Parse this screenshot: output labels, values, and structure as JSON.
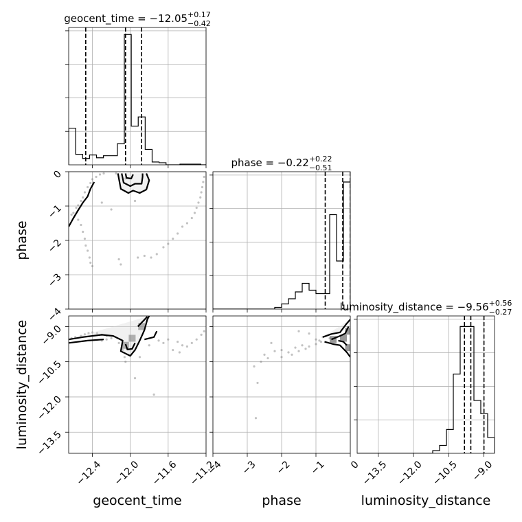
{
  "chart_data": {
    "type": "corner",
    "parameters": [
      {
        "name": "geocent_time",
        "title_prefix": "geocent_time = −12.05",
        "title_plus": "+0.17",
        "title_minus": "−0.42",
        "median": -12.05,
        "q_low": -12.47,
        "q_high": -11.88,
        "range": [
          -12.65,
          -11.2
        ],
        "ticks": [
          -12.4,
          -12.0,
          -11.6,
          -11.2
        ],
        "tick_labels": [
          "−12.4",
          "−12.0",
          "−11.6",
          "−11.2"
        ],
        "hist_bin_edges": [
          -12.65,
          -12.5766,
          -12.5032,
          -12.4298,
          -12.3564,
          -12.283,
          -12.2096,
          -12.1362,
          -12.0628,
          -11.9894,
          -11.916,
          -11.8426,
          -11.7692,
          -11.6958,
          -11.6224,
          -11.549,
          -11.4756,
          -11.4022,
          -11.3288,
          -11.2554,
          -11.2
        ],
        "hist_counts": [
          0.52,
          0.15,
          0.09,
          0.14,
          0.1,
          0.13,
          0.13,
          0.3,
          1.85,
          0.55,
          0.68,
          0.22,
          0.04,
          0.03,
          0.0,
          0.0,
          0.01,
          0.01,
          0.01,
          0.0
        ],
        "hist_ymax": 1.95
      },
      {
        "name": "phase",
        "title_prefix": "phase = −0.22",
        "title_plus": "+0.22",
        "title_minus": "−0.51",
        "median": -0.22,
        "q_low": -0.73,
        "q_high": 0.0,
        "range": [
          -4.0,
          0.0
        ],
        "ticks": [
          -4,
          -3,
          -2,
          -1,
          0
        ],
        "tick_labels": [
          "−4",
          "−3",
          "−2",
          "−1",
          "0"
        ],
        "y_tick_labels": [
          "−4",
          "−3",
          "−2",
          "−1",
          "0"
        ],
        "hist_bin_edges": [
          -4.0,
          -3.8,
          -3.6,
          -3.4,
          -3.2,
          -3.0,
          -2.8,
          -2.6,
          -2.4,
          -2.2,
          -2.0,
          -1.8,
          -1.6,
          -1.4,
          -1.2,
          -1.0,
          -0.8,
          -0.6,
          -0.4,
          -0.2,
          0.0
        ],
        "hist_counts": [
          0.0,
          0.0,
          0.0,
          0.0,
          0.0,
          0.0,
          0.0,
          0.0,
          0.0,
          0.01,
          0.03,
          0.06,
          0.1,
          0.15,
          0.11,
          0.09,
          0.09,
          0.55,
          0.28,
          0.74
        ],
        "hist_ymax": 0.8
      },
      {
        "name": "luminosity_distance",
        "title_prefix": "luminosity_distance = −9.56",
        "title_plus": "+0.56",
        "title_minus": "−0.27",
        "median": -9.56,
        "q_low": -9.83,
        "q_high": -9.0,
        "range": [
          -14.4,
          -8.55
        ],
        "ticks": [
          -13.5,
          -12.0,
          -10.5,
          -9.0
        ],
        "tick_labels": [
          "−13.5",
          "−12.0",
          "−10.5",
          "−9.0"
        ],
        "y_tick_labels": [
          "−13.5",
          "−12.0",
          "−10.5",
          "−9.0"
        ],
        "hist_bin_edges": [
          -14.4,
          -14.1075,
          -13.815,
          -13.5225,
          -13.23,
          -12.9375,
          -12.645,
          -12.3525,
          -12.06,
          -11.7675,
          -11.475,
          -11.1825,
          -10.89,
          -10.5975,
          -10.305,
          -10.0125,
          -9.72,
          -9.4275,
          -9.135,
          -8.8425,
          -8.55
        ],
        "hist_counts": [
          0.0,
          0.0,
          0.0,
          0.0,
          0.0,
          0.0,
          0.0,
          0.0,
          0.0,
          0.0,
          0.0,
          0.01,
          0.03,
          0.09,
          0.3,
          0.48,
          0.48,
          0.2,
          0.15,
          0.06
        ],
        "hist_ymax": 0.52
      }
    ],
    "axis_labels": {
      "x": [
        "geocent_time",
        "phase",
        "luminosity_distance"
      ],
      "y": [
        "phase",
        "luminosity_distance"
      ]
    },
    "pairs": [
      {
        "x": "geocent_time",
        "y": "phase",
        "scatter": [
          [
            -12.62,
            -1.25
          ],
          [
            -12.6,
            -1.2
          ],
          [
            -12.57,
            -1.05
          ],
          [
            -12.55,
            -0.98
          ],
          [
            -12.52,
            -0.85
          ],
          [
            -12.5,
            -0.75
          ],
          [
            -12.48,
            -0.6
          ],
          [
            -12.45,
            -0.45
          ],
          [
            -12.42,
            -0.33
          ],
          [
            -12.4,
            -0.22
          ],
          [
            -12.36,
            -0.15
          ],
          [
            -12.32,
            -0.08
          ],
          [
            -12.28,
            -0.05
          ],
          [
            -12.55,
            -1.4
          ],
          [
            -12.52,
            -1.55
          ],
          [
            -12.5,
            -1.75
          ],
          [
            -12.48,
            -1.95
          ],
          [
            -12.47,
            -2.15
          ],
          [
            -12.45,
            -2.3
          ],
          [
            -12.43,
            -2.5
          ],
          [
            -12.42,
            -2.65
          ],
          [
            -12.4,
            -2.75
          ],
          [
            -12.1,
            -2.7
          ],
          [
            -12.12,
            -2.55
          ],
          [
            -11.92,
            -2.5
          ],
          [
            -11.85,
            -2.45
          ],
          [
            -11.78,
            -2.5
          ],
          [
            -11.72,
            -2.4
          ],
          [
            -11.65,
            -2.2
          ],
          [
            -11.6,
            -2.1
          ],
          [
            -11.55,
            -1.95
          ],
          [
            -11.5,
            -1.8
          ],
          [
            -11.45,
            -1.6
          ],
          [
            -11.4,
            -1.5
          ],
          [
            -11.35,
            -1.35
          ],
          [
            -11.32,
            -1.2
          ],
          [
            -11.3,
            -1.05
          ],
          [
            -11.28,
            -0.9
          ],
          [
            -11.26,
            -0.75
          ],
          [
            -11.25,
            -0.6
          ],
          [
            -11.24,
            -0.45
          ],
          [
            -11.23,
            -0.3
          ],
          [
            -11.22,
            -0.15
          ],
          [
            -11.9,
            -0.6
          ],
          [
            -12.0,
            -0.4
          ],
          [
            -12.05,
            -0.2
          ],
          [
            -12.15,
            -0.05
          ],
          [
            -11.95,
            -0.85
          ],
          [
            -12.3,
            -0.9
          ],
          [
            -12.2,
            -1.1
          ]
        ],
        "contours": [
          [
            [
              -12.13,
              -0.05
            ],
            [
              -12.1,
              -0.5
            ],
            [
              -12.02,
              -0.62
            ],
            [
              -11.97,
              -0.55
            ],
            [
              -11.9,
              -0.62
            ],
            [
              -11.83,
              -0.52
            ],
            [
              -11.8,
              -0.25
            ],
            [
              -11.83,
              -0.05
            ]
          ],
          [
            [
              -12.09,
              -0.05
            ],
            [
              -12.07,
              -0.32
            ],
            [
              -12.0,
              -0.42
            ],
            [
              -11.95,
              -0.35
            ],
            [
              -11.88,
              -0.35
            ],
            [
              -11.87,
              -0.15
            ],
            [
              -11.87,
              -0.05
            ]
          ],
          [
            [
              -12.05,
              -0.05
            ],
            [
              -12.04,
              -0.18
            ],
            [
              -11.99,
              -0.2
            ],
            [
              -11.97,
              -0.08
            ]
          ],
          [
            [
              -12.65,
              -1.6
            ],
            [
              -12.6,
              -1.35
            ],
            [
              -12.55,
              -1.12
            ],
            [
              -12.5,
              -0.9
            ],
            [
              -12.45,
              -0.72
            ],
            [
              -12.42,
              -0.5
            ],
            [
              -12.38,
              -0.3
            ]
          ]
        ]
      },
      {
        "x": "geocent_time",
        "y": "luminosity_distance",
        "scatter": [
          [
            -12.62,
            -9.5
          ],
          [
            -12.58,
            -9.45
          ],
          [
            -12.52,
            -9.4
          ],
          [
            -12.48,
            -9.33
          ],
          [
            -12.44,
            -9.28
          ],
          [
            -12.4,
            -9.25
          ],
          [
            -12.35,
            -9.28
          ],
          [
            -12.3,
            -9.35
          ],
          [
            -12.25,
            -9.4
          ],
          [
            -12.2,
            -9.5
          ],
          [
            -12.12,
            -9.7
          ],
          [
            -12.08,
            -10.0
          ],
          [
            -12.06,
            -10.3
          ],
          [
            -12.05,
            -10.5
          ],
          [
            -11.9,
            -10.3
          ],
          [
            -11.8,
            -9.8
          ],
          [
            -11.7,
            -9.6
          ],
          [
            -11.6,
            -9.55
          ],
          [
            -11.5,
            -9.65
          ],
          [
            -11.45,
            -9.8
          ],
          [
            -11.4,
            -9.85
          ],
          [
            -11.35,
            -9.7
          ],
          [
            -11.3,
            -9.55
          ],
          [
            -11.25,
            -9.35
          ],
          [
            -11.22,
            -9.2
          ],
          [
            -11.95,
            -11.2
          ],
          [
            -11.75,
            -11.9
          ],
          [
            -12.25,
            -9.55
          ],
          [
            -12.3,
            -9.6
          ],
          [
            -11.55,
            -10.0
          ],
          [
            -11.48,
            -10.1
          ],
          [
            -11.65,
            -9.7
          ]
        ],
        "contours": [
          [
            [
              -12.65,
              -9.55
            ],
            [
              -12.5,
              -9.45
            ],
            [
              -12.3,
              -9.35
            ],
            [
              -12.18,
              -9.4
            ],
            [
              -12.08,
              -9.6
            ],
            [
              -12.1,
              -10.05
            ],
            [
              -12.0,
              -10.25
            ],
            [
              -11.95,
              -10.0
            ],
            [
              -11.9,
              -9.6
            ],
            [
              -11.85,
              -9.15
            ],
            [
              -11.82,
              -8.7
            ],
            [
              -11.8,
              -8.55
            ]
          ],
          [
            [
              -12.05,
              -9.75
            ],
            [
              -12.03,
              -9.98
            ],
            [
              -11.98,
              -9.95
            ],
            [
              -11.95,
              -9.7
            ]
          ],
          [
            [
              -12.65,
              -9.7
            ],
            [
              -12.45,
              -9.6
            ],
            [
              -12.28,
              -9.55
            ]
          ],
          [
            [
              -11.85,
              -9.55
            ],
            [
              -11.75,
              -9.45
            ],
            [
              -11.72,
              -9.2
            ]
          ],
          [
            [
              -11.92,
              -9.0
            ],
            [
              -11.86,
              -8.75
            ],
            [
              -11.82,
              -8.58
            ]
          ]
        ],
        "dense_points": [
          [
            -12.05,
            -9.8
          ],
          [
            -11.98,
            -9.5
          ],
          [
            -11.88,
            -9.0
          ]
        ]
      },
      {
        "x": "phase",
        "y": "luminosity_distance",
        "scatter": [
          [
            -2.8,
            -10.7
          ],
          [
            -2.5,
            -10.2
          ],
          [
            -2.3,
            -9.7
          ],
          [
            -2.2,
            -10.05
          ],
          [
            -2.0,
            -10.0
          ],
          [
            -1.8,
            -10.1
          ],
          [
            -1.6,
            -9.9
          ],
          [
            -1.4,
            -9.8
          ],
          [
            -1.2,
            -9.85
          ],
          [
            -1.0,
            -9.75
          ],
          [
            -0.85,
            -9.65
          ],
          [
            -2.6,
            -10.5
          ],
          [
            -2.4,
            -10.35
          ],
          [
            -2.0,
            -10.3
          ],
          [
            -1.7,
            -10.2
          ],
          [
            -1.5,
            -10.05
          ],
          [
            -1.3,
            -9.95
          ],
          [
            -1.0,
            -9.55
          ],
          [
            -0.8,
            -9.45
          ],
          [
            -2.7,
            -11.4
          ],
          [
            -2.75,
            -12.9
          ],
          [
            -1.5,
            -9.2
          ],
          [
            -1.2,
            -9.3
          ],
          [
            -0.9,
            -9.6
          ],
          [
            -0.6,
            -9.5
          ]
        ],
        "contours": [
          [
            [
              -0.8,
              -9.45
            ],
            [
              -0.55,
              -9.32
            ],
            [
              -0.3,
              -9.25
            ],
            [
              -0.12,
              -8.9
            ],
            [
              0.0,
              -8.7
            ]
          ],
          [
            [
              -0.75,
              -9.65
            ],
            [
              -0.5,
              -9.75
            ],
            [
              -0.3,
              -9.8
            ],
            [
              -0.1,
              -10.1
            ],
            [
              0.0,
              -10.3
            ]
          ],
          [
            [
              -0.55,
              -9.55
            ],
            [
              -0.3,
              -9.4
            ],
            [
              -0.15,
              -9.3
            ],
            [
              -0.05,
              -9.0
            ]
          ],
          [
            [
              -0.35,
              -9.6
            ],
            [
              -0.2,
              -9.65
            ],
            [
              -0.1,
              -9.8
            ]
          ]
        ],
        "dense_points": [
          [
            -0.5,
            -9.55
          ],
          [
            -0.2,
            -9.5
          ],
          [
            -0.05,
            -9.2
          ],
          [
            -0.05,
            -9.9
          ]
        ]
      }
    ]
  }
}
